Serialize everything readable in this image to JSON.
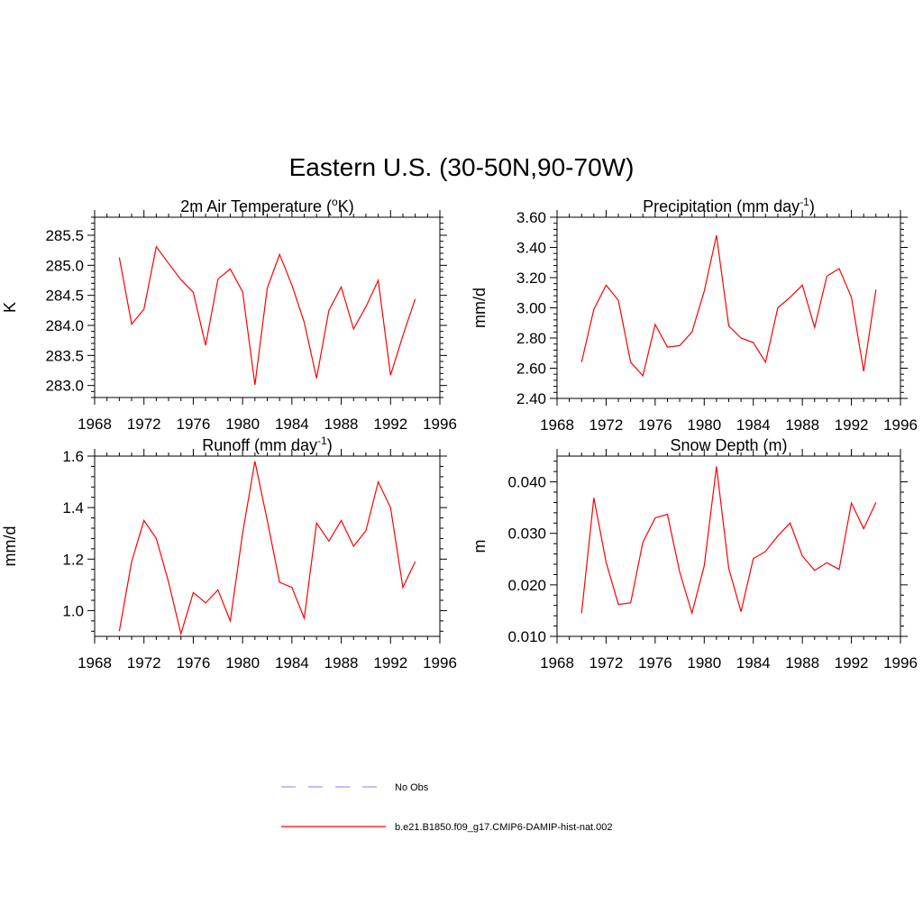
{
  "figure": {
    "title": "Eastern U.S. (30-50N,90-70W)"
  },
  "legend": [
    {
      "label": "No Obs",
      "color": "#9999ff",
      "dashed": true
    },
    {
      "label": "b.e21.B1850.f09_g17.CMIP6-DAMIP-hist-nat.002",
      "color": "#ff0000",
      "dashed": false
    }
  ],
  "chart_data": [
    {
      "type": "line",
      "title": "2m Air Temperature (",
      "title_sup": "o",
      "title_after": "K)",
      "ylabel": "K",
      "xlim": [
        1968,
        1996
      ],
      "ylim": [
        282.8,
        285.8
      ],
      "xticks": [
        1968,
        1972,
        1976,
        1980,
        1984,
        1988,
        1992,
        1996
      ],
      "yticks": [
        283.0,
        283.5,
        284.0,
        284.5,
        285.0,
        285.5
      ],
      "ytick_labels": [
        "283.0",
        "283.5",
        "284.0",
        "284.5",
        "285.0",
        "285.5"
      ],
      "x": [
        1970,
        1971,
        1972,
        1973,
        1974,
        1975,
        1976,
        1977,
        1978,
        1979,
        1980,
        1981,
        1982,
        1983,
        1984,
        1985,
        1986,
        1987,
        1988,
        1989,
        1990,
        1991,
        1992,
        1993,
        1994
      ],
      "series": [
        {
          "name": "b.e21.B1850.f09_g17.CMIP6-DAMIP-hist-nat.002",
          "color": "#ff0000",
          "values": [
            285.13,
            284.02,
            284.27,
            285.31,
            285.03,
            284.76,
            284.55,
            283.67,
            284.77,
            284.94,
            284.56,
            283.01,
            284.62,
            285.18,
            284.67,
            284.05,
            283.12,
            284.25,
            284.64,
            283.94,
            284.31,
            284.75,
            283.17,
            283.83,
            284.44
          ]
        }
      ]
    },
    {
      "type": "line",
      "title": "Precipitation (mm day",
      "title_sup": "-1",
      "title_after": ")",
      "ylabel": "mm/d",
      "xlim": [
        1968,
        1996
      ],
      "ylim": [
        2.4,
        3.6
      ],
      "xticks": [
        1968,
        1972,
        1976,
        1980,
        1984,
        1988,
        1992,
        1996
      ],
      "yticks": [
        2.4,
        2.6,
        2.8,
        3.0,
        3.2,
        3.4,
        3.6
      ],
      "ytick_labels": [
        "2.40",
        "2.60",
        "2.80",
        "3.00",
        "3.20",
        "3.40",
        "3.60"
      ],
      "x": [
        1970,
        1971,
        1972,
        1973,
        1974,
        1975,
        1976,
        1977,
        1978,
        1979,
        1980,
        1981,
        1982,
        1983,
        1984,
        1985,
        1986,
        1987,
        1988,
        1989,
        1990,
        1991,
        1992,
        1993,
        1994
      ],
      "series": [
        {
          "name": "b.e21.B1850.f09_g17.CMIP6-DAMIP-hist-nat.002",
          "color": "#ff0000",
          "values": [
            2.64,
            2.99,
            3.15,
            3.05,
            2.64,
            2.55,
            2.89,
            2.74,
            2.75,
            2.84,
            3.11,
            3.48,
            2.88,
            2.8,
            2.77,
            2.64,
            3.0,
            3.07,
            3.15,
            2.87,
            3.21,
            3.26,
            3.07,
            2.58,
            3.12
          ]
        }
      ]
    },
    {
      "type": "line",
      "title": "Runoff (mm day",
      "title_sup": "-1",
      "title_after": ")",
      "ylabel": "mm/d",
      "xlim": [
        1968,
        1996
      ],
      "ylim": [
        0.9,
        1.6
      ],
      "xticks": [
        1968,
        1972,
        1976,
        1980,
        1984,
        1988,
        1992,
        1996
      ],
      "yticks": [
        1.0,
        1.2,
        1.4,
        1.6
      ],
      "ytick_labels": [
        "1.0",
        "1.2",
        "1.4",
        "1.6"
      ],
      "x": [
        1970,
        1971,
        1972,
        1973,
        1974,
        1975,
        1976,
        1977,
        1978,
        1979,
        1980,
        1981,
        1982,
        1983,
        1984,
        1985,
        1986,
        1987,
        1988,
        1989,
        1990,
        1991,
        1992,
        1993,
        1994
      ],
      "series": [
        {
          "name": "b.e21.B1850.f09_g17.CMIP6-DAMIP-hist-nat.002",
          "color": "#ff0000",
          "values": [
            0.92,
            1.19,
            1.35,
            1.28,
            1.11,
            0.91,
            1.07,
            1.03,
            1.08,
            0.96,
            1.3,
            1.58,
            1.35,
            1.11,
            1.09,
            0.97,
            1.34,
            1.27,
            1.35,
            1.25,
            1.31,
            1.5,
            1.4,
            1.09,
            1.19
          ]
        }
      ]
    },
    {
      "type": "line",
      "title": "Snow Depth (m)",
      "title_sup": "",
      "title_after": "",
      "ylabel": "m",
      "xlim": [
        1968,
        1996
      ],
      "ylim": [
        0.01,
        0.045
      ],
      "xticks": [
        1968,
        1972,
        1976,
        1980,
        1984,
        1988,
        1992,
        1996
      ],
      "yticks": [
        0.01,
        0.02,
        0.03,
        0.04
      ],
      "ytick_labels": [
        "0.010",
        "0.020",
        "0.030",
        "0.040"
      ],
      "x": [
        1970,
        1971,
        1972,
        1973,
        1974,
        1975,
        1976,
        1977,
        1978,
        1979,
        1980,
        1981,
        1982,
        1983,
        1984,
        1985,
        1986,
        1987,
        1988,
        1989,
        1990,
        1991,
        1992,
        1993,
        1994
      ],
      "series": [
        {
          "name": "b.e21.B1850.f09_g17.CMIP6-DAMIP-hist-nat.002",
          "color": "#ff0000",
          "values": [
            0.0145,
            0.0369,
            0.0244,
            0.0162,
            0.0165,
            0.0283,
            0.033,
            0.0337,
            0.0225,
            0.0145,
            0.0237,
            0.043,
            0.0232,
            0.0148,
            0.0251,
            0.0265,
            0.0295,
            0.032,
            0.0256,
            0.0228,
            0.0243,
            0.023,
            0.0359,
            0.0309,
            0.036
          ]
        }
      ]
    }
  ]
}
